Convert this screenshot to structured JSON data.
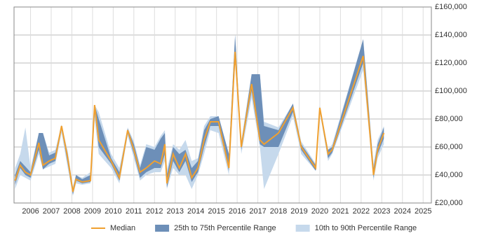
{
  "chart_data": {
    "type": "band-line",
    "x": [
      2005.25,
      2005.5,
      2005.75,
      2006.0,
      2006.4,
      2006.6,
      2006.9,
      2007.2,
      2007.5,
      2007.8,
      2008.05,
      2008.2,
      2008.5,
      2008.9,
      2009.1,
      2009.3,
      2009.9,
      2010.3,
      2010.7,
      2011.0,
      2011.3,
      2011.6,
      2012.0,
      2012.3,
      2012.5,
      2012.6,
      2012.9,
      2013.2,
      2013.5,
      2013.8,
      2014.1,
      2014.4,
      2014.7,
      2015.1,
      2015.6,
      2015.9,
      2016.2,
      2016.7,
      2017.1,
      2017.3,
      2018.0,
      2018.7,
      2019.1,
      2019.8,
      2020.0,
      2020.4,
      2020.6,
      2022.1,
      2022.6,
      2022.8,
      2023.1
    ],
    "series": [
      {
        "name": "10th to 90th Percentile Range",
        "color": "#c6d9ec",
        "kind": "band",
        "low": [
          30000,
          40000,
          38000,
          36000,
          55000,
          44000,
          46000,
          48000,
          70000,
          45000,
          25000,
          34000,
          33000,
          34000,
          80000,
          55000,
          45000,
          34000,
          68000,
          52000,
          36000,
          40000,
          42000,
          42000,
          50000,
          30000,
          45000,
          40000,
          40000,
          30000,
          40000,
          55000,
          72000,
          70000,
          40000,
          120000,
          55000,
          95000,
          60000,
          30000,
          55000,
          82000,
          55000,
          43000,
          85000,
          50000,
          55000,
          115000,
          36000,
          52000,
          62000
        ],
        "high": [
          45000,
          55000,
          74000,
          45000,
          70000,
          70000,
          56000,
          58000,
          76000,
          57000,
          32000,
          40000,
          38000,
          42000,
          90000,
          85000,
          55000,
          45000,
          74000,
          64000,
          47000,
          62000,
          60000,
          68000,
          72000,
          44000,
          62000,
          58000,
          65000,
          50000,
          52000,
          75000,
          82000,
          82000,
          55000,
          140000,
          65000,
          112000,
          112000,
          78000,
          74000,
          91000,
          64000,
          48000,
          89000,
          58000,
          62000,
          137000,
          48000,
          65000,
          75000
        ]
      },
      {
        "name": "25th to 75th Percentile Range",
        "color": "#6d8fb8",
        "kind": "band",
        "low": [
          33000,
          45000,
          40000,
          38000,
          58000,
          44000,
          48000,
          50000,
          73000,
          48000,
          26000,
          36000,
          34000,
          35000,
          85000,
          60000,
          48000,
          36000,
          70000,
          55000,
          38000,
          42000,
          45000,
          45000,
          55000,
          31000,
          50000,
          42000,
          50000,
          35000,
          42000,
          60000,
          75000,
          75000,
          43000,
          125000,
          58000,
          100000,
          62000,
          60000,
          60000,
          85000,
          58000,
          43000,
          86000,
          52000,
          56000,
          120000,
          38000,
          55000,
          66000
        ],
        "high": [
          40000,
          50000,
          46000,
          42000,
          70000,
          70000,
          54000,
          56000,
          75000,
          55000,
          30000,
          40000,
          37000,
          40000,
          90000,
          80000,
          52000,
          42000,
          73000,
          62000,
          45000,
          60000,
          58000,
          66000,
          70000,
          40000,
          60000,
          55000,
          58000,
          45000,
          50000,
          72000,
          80000,
          82000,
          55000,
          140000,
          62000,
          112000,
          112000,
          75000,
          72000,
          91000,
          62000,
          47000,
          89000,
          58000,
          60000,
          137000,
          45000,
          62000,
          74000
        ]
      },
      {
        "name": "Median",
        "color": "#f0a030",
        "kind": "line",
        "values": [
          36000,
          47000,
          42000,
          40000,
          63000,
          47000,
          50000,
          52000,
          75000,
          52000,
          28000,
          37000,
          35000,
          36000,
          90000,
          65000,
          50000,
          38000,
          72000,
          58000,
          42000,
          45000,
          50000,
          48000,
          62000,
          34000,
          55000,
          45000,
          55000,
          38000,
          45000,
          65000,
          78000,
          78000,
          45000,
          128000,
          60000,
          105000,
          65000,
          62000,
          70000,
          88000,
          60000,
          45000,
          88000,
          55000,
          58000,
          125000,
          40000,
          58000,
          70000
        ]
      }
    ],
    "xlim": [
      2005.2,
      2025.4
    ],
    "xticks": [
      2006,
      2007,
      2008,
      2009,
      2010,
      2011,
      2012,
      2013,
      2014,
      2015,
      2016,
      2017,
      2018,
      2019,
      2020,
      2021,
      2022,
      2023,
      2024,
      2025
    ],
    "ylim": [
      20000,
      160000
    ],
    "yticks": [
      {
        "value": 20000,
        "label": "£20,000"
      },
      {
        "value": 40000,
        "label": "£40,000"
      },
      {
        "value": 60000,
        "label": "£60,000"
      },
      {
        "value": 80000,
        "label": "£80,000"
      },
      {
        "value": 100000,
        "label": "£100,000"
      },
      {
        "value": 120000,
        "label": "£120,000"
      },
      {
        "value": 140000,
        "label": "£140,000"
      },
      {
        "value": 160000,
        "label": "£160,000"
      }
    ],
    "grid": true
  }
}
